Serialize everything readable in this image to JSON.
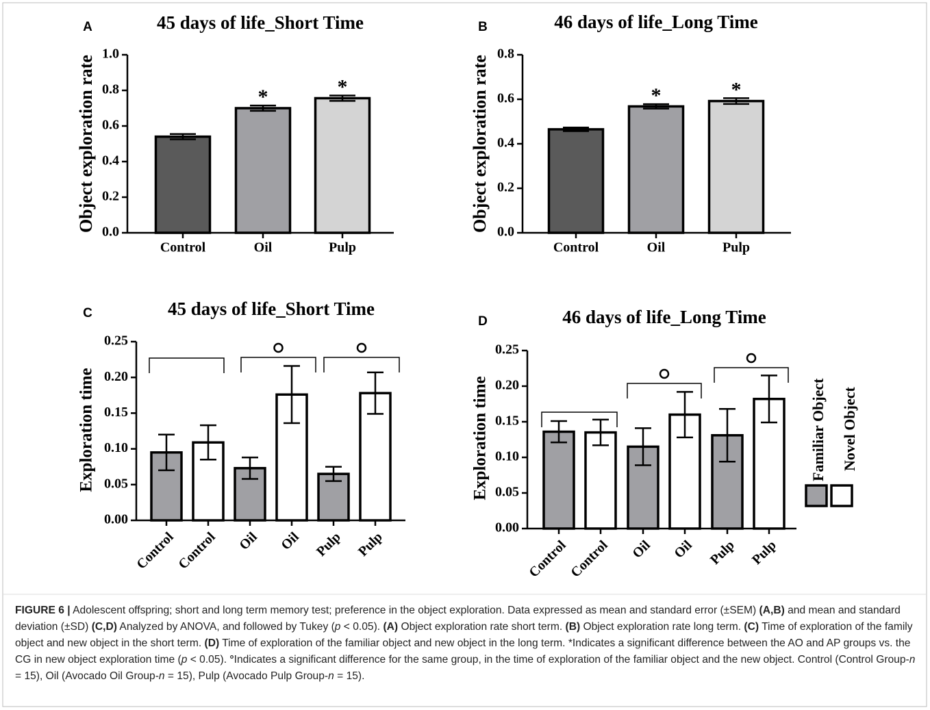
{
  "chart_data": [
    {
      "type": "bar",
      "panel": "A",
      "title": "45 days of life_Short Time",
      "y_label": "Object exploration rate",
      "categories": [
        "Control",
        "Oil",
        "Pulp"
      ],
      "values": [
        0.54,
        0.7,
        0.756
      ],
      "errors": [
        0.015,
        0.015,
        0.015
      ],
      "colors": [
        "#5a5a5a",
        "#a0a0a4",
        "#d4d4d4"
      ],
      "annotations": [
        null,
        "*",
        "*"
      ],
      "ylim": [
        0,
        1.0
      ],
      "yticks": [
        {
          "value": 0,
          "label": "0.0"
        },
        0.2,
        0.4,
        0.6,
        0.8,
        {
          "value": 1,
          "label": "1.0"
        }
      ]
    },
    {
      "type": "bar",
      "panel": "B",
      "title": "46 days of life_Long Time",
      "y_label": "Object exploration rate",
      "categories": [
        "Control",
        "Oil",
        "Pulp"
      ],
      "values": [
        0.465,
        0.568,
        0.592
      ],
      "errors": [
        0.008,
        0.01,
        0.013
      ],
      "colors": [
        "#5a5a5a",
        "#a0a0a4",
        "#d4d4d4"
      ],
      "annotations": [
        null,
        "*",
        "*"
      ],
      "ylim": [
        0,
        0.8
      ],
      "yticks": [
        {
          "value": 0,
          "label": "0.0"
        },
        0.2,
        0.4,
        0.6,
        0.8
      ]
    },
    {
      "type": "bar",
      "panel": "C",
      "title": "45 days of life_Short Time",
      "y_label": "Exploration time",
      "categories": [
        "Control",
        "Control",
        "Oil",
        "Oil",
        "Pulp",
        "Pulp"
      ],
      "values": [
        0.095,
        0.109,
        0.073,
        0.176,
        0.065,
        0.178
      ],
      "errors": [
        0.025,
        0.024,
        0.015,
        0.04,
        0.01,
        0.029
      ],
      "colors": [
        "#a0a0a4",
        "#ffffff",
        "#a0a0a4",
        "#ffffff",
        "#a0a0a4",
        "#ffffff"
      ],
      "ylim": [
        0,
        0.25
      ],
      "yticks": [
        {
          "value": 0,
          "label": "0.00"
        },
        0.05,
        {
          "value": 0.1,
          "label": "0.10"
        },
        0.15,
        {
          "value": 0.2,
          "label": "0.20"
        },
        0.25
      ]
    },
    {
      "type": "bar",
      "panel": "D",
      "title": "46 days of life_Long Time",
      "y_label": "Exploration time",
      "categories": [
        "Control",
        "Control",
        "Oil",
        "Oil",
        "Pulp",
        "Pulp"
      ],
      "values": [
        0.136,
        0.135,
        0.115,
        0.16,
        0.131,
        0.182
      ],
      "errors": [
        0.015,
        0.018,
        0.026,
        0.032,
        0.037,
        0.033
      ],
      "colors": [
        "#a0a0a4",
        "#ffffff",
        "#a0a0a4",
        "#ffffff",
        "#a0a0a4",
        "#ffffff"
      ],
      "legend": [
        {
          "name": "Familiar Object",
          "color": "#a0a0a4"
        },
        {
          "name": "Novel Object",
          "color": "#ffffff"
        }
      ],
      "ylim": [
        0,
        0.25
      ],
      "yticks": [
        {
          "value": 0,
          "label": "0.00"
        },
        0.05,
        {
          "value": 0.1,
          "label": "0.10"
        },
        0.15,
        {
          "value": 0.2,
          "label": "0.20"
        },
        0.25
      ]
    }
  ],
  "caption": [
    {
      "text": "FIGURE 6 |",
      "style": "b"
    },
    {
      "text": " Adolescent offspring; short and long term memory test; preference in the object exploration. Data expressed as mean and standard error (±SEM) ",
      "style": "r"
    },
    {
      "text": "(A,B)",
      "style": "b"
    },
    {
      "text": " and mean and standard deviation (±SD) ",
      "style": "r"
    },
    {
      "text": "(C,D)",
      "style": "b"
    },
    {
      "text": " Analyzed by ANOVA, and followed by Tukey (",
      "style": "r"
    },
    {
      "text": "p",
      "style": "i"
    },
    {
      "text": " < 0.05). ",
      "style": "r"
    },
    {
      "text": "(A)",
      "style": "b"
    },
    {
      "text": " Object exploration rate short term. ",
      "style": "r"
    },
    {
      "text": "(B)",
      "style": "b"
    },
    {
      "text": " Object exploration rate long term. ",
      "style": "r"
    },
    {
      "text": "(C)",
      "style": "b"
    },
    {
      "text": " Time of exploration of the family object and new object in the short term. ",
      "style": "r"
    },
    {
      "text": "(D)",
      "style": "b"
    },
    {
      "text": " Time of exploration of the familiar object and new object in the long term. *Indicates a significant difference between the AO and AP groups vs. the CG in new object exploration time (",
      "style": "r"
    },
    {
      "text": "p",
      "style": "i"
    },
    {
      "text": " < 0.05). ",
      "style": "r"
    },
    {
      "text": "°",
      "style": "b"
    },
    {
      "text": "Indicates a significant difference for the same group, in the time of exploration of the familiar object and the new object. Control (Control Group-",
      "style": "r"
    },
    {
      "text": "n",
      "style": "i"
    },
    {
      "text": " = 15), Oil (Avocado Oil Group-",
      "style": "r"
    },
    {
      "text": "n",
      "style": "i"
    },
    {
      "text": " = 15), Pulp (Avocado Pulp Group-",
      "style": "r"
    },
    {
      "text": "n",
      "style": "i"
    },
    {
      "text": " = 15).",
      "style": "r"
    }
  ]
}
